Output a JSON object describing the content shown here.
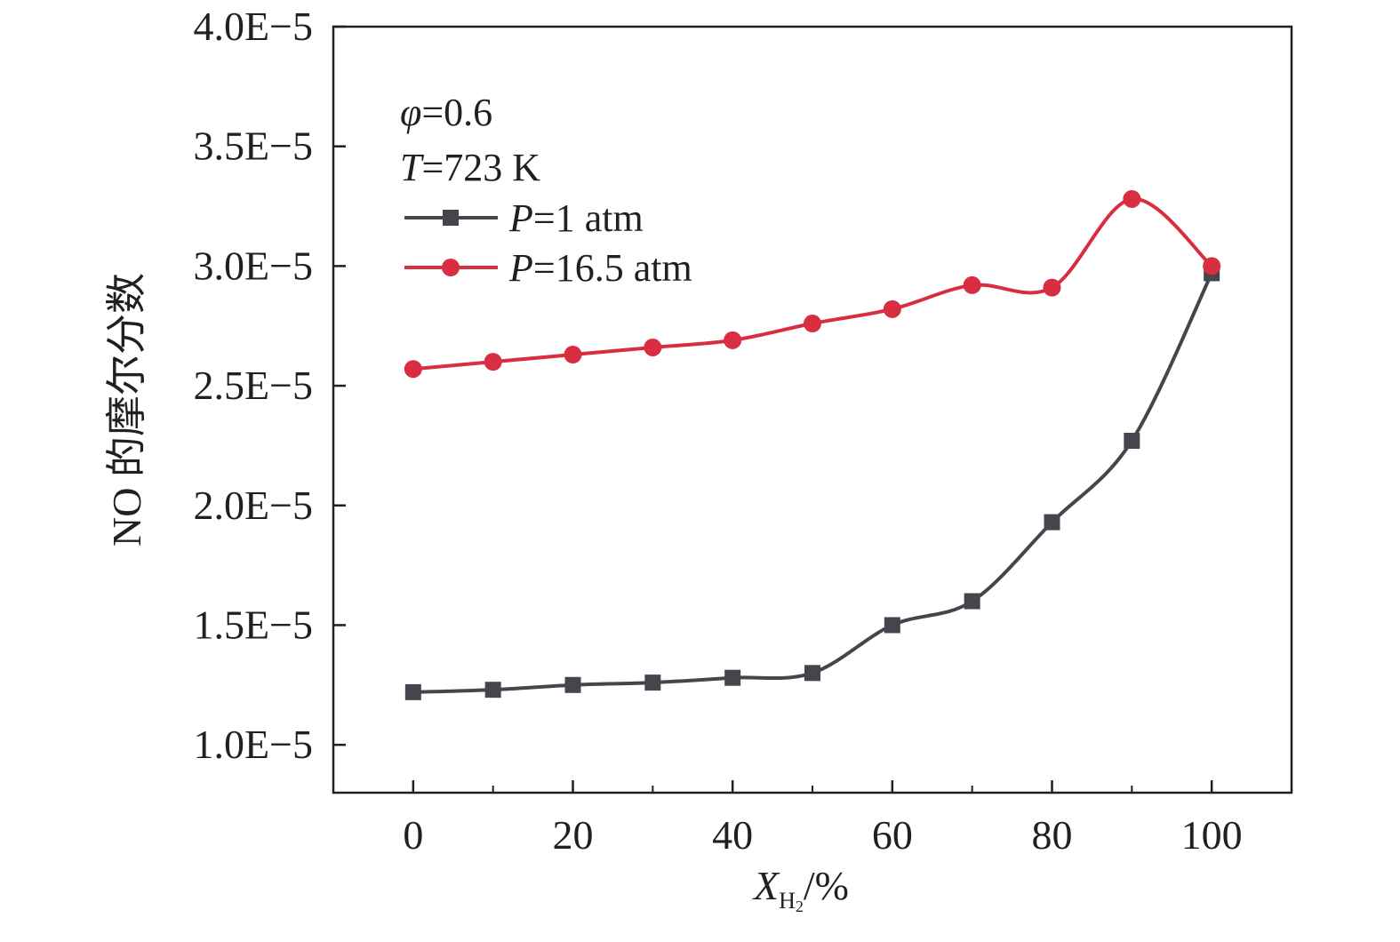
{
  "chart_data": {
    "type": "line",
    "title": "",
    "xlabel": {
      "symbol": "X",
      "subscript": "H",
      "subscript2": "2",
      "unit": "/%"
    },
    "ylabel": "NO 的摩尔分数",
    "xlim": [
      -10,
      110
    ],
    "ylim": [
      8e-06,
      4e-05
    ],
    "x_ticks": [
      0,
      20,
      40,
      60,
      80,
      100
    ],
    "x_tick_labels": [
      "0",
      "20",
      "40",
      "60",
      "80",
      "100"
    ],
    "x_minor_ticks": [
      10,
      30,
      50,
      70,
      90
    ],
    "y_ticks": [
      1e-05,
      1.5e-05,
      2e-05,
      2.5e-05,
      3e-05,
      3.5e-05,
      4e-05
    ],
    "y_tick_labels": [
      "1.0E−5",
      "1.5E−5",
      "2.0E−5",
      "2.5E−5",
      "3.0E−5",
      "3.5E−5",
      "4.0E−5"
    ],
    "grid": false,
    "legend_position": "top-left",
    "annotations": {
      "phi": {
        "symbol": "φ",
        "value": "=0.6"
      },
      "temp": {
        "symbol": "T",
        "value": "=723 K"
      }
    },
    "x": [
      0,
      10,
      20,
      30,
      40,
      50,
      60,
      70,
      80,
      90,
      100
    ],
    "series": [
      {
        "name_symbol": "P",
        "name_value": "=1 atm",
        "color": "#45464d",
        "marker": "square",
        "values": [
          1.22e-05,
          1.23e-05,
          1.25e-05,
          1.26e-05,
          1.28e-05,
          1.3e-05,
          1.5e-05,
          1.6e-05,
          1.93e-05,
          2.27e-05,
          2.97e-05
        ]
      },
      {
        "name_symbol": "P",
        "name_value": "=16.5 atm",
        "color": "#d92d41",
        "marker": "circle",
        "values": [
          2.57e-05,
          2.6e-05,
          2.63e-05,
          2.66e-05,
          2.69e-05,
          2.76e-05,
          2.82e-05,
          2.92e-05,
          2.91e-05,
          3.28e-05,
          3e-05
        ]
      }
    ]
  }
}
